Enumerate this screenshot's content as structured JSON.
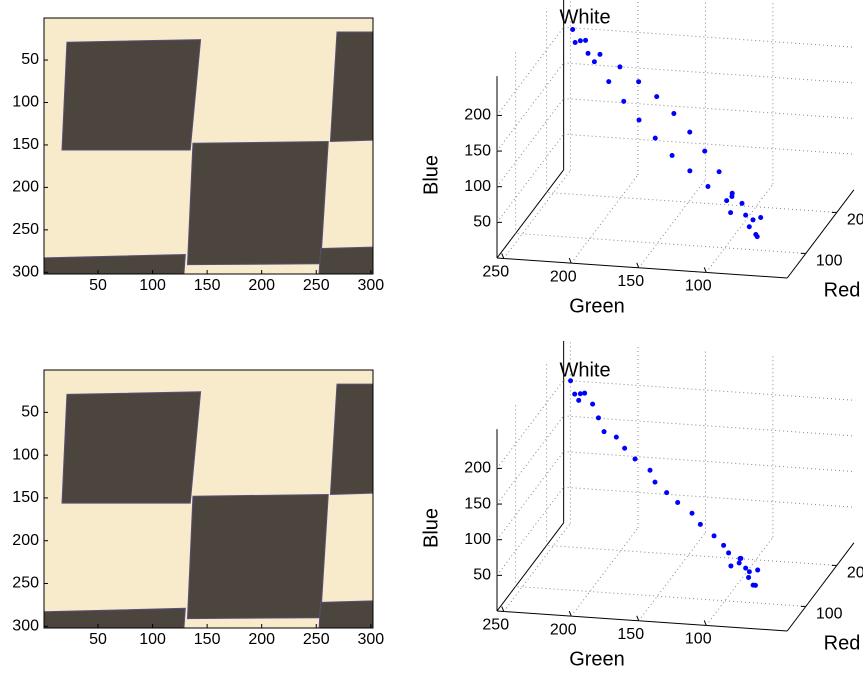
{
  "chart_data": [
    {
      "type": "image",
      "xlim": [
        0.5,
        302
      ],
      "ylim": [
        0.5,
        302
      ],
      "xticks": [
        50,
        100,
        150,
        200,
        250,
        300
      ],
      "yticks": [
        50,
        100,
        150,
        200,
        250,
        300
      ]
    },
    {
      "type": "scatter3d",
      "title": "White",
      "xlabel": "Red",
      "ylabel": "Green",
      "zlabel": "Blue",
      "color": "#0000ff",
      "xlim": [
        40,
        255
      ],
      "ylim": [
        40,
        255
      ],
      "zlim": [
        0,
        255
      ],
      "xticks": [
        100,
        200
      ],
      "yticks": [
        100,
        150,
        200,
        250
      ],
      "zticks": [
        50,
        100,
        150,
        200
      ],
      "grid": true,
      "x": [
        200,
        180,
        161,
        144,
        128,
        115,
        104,
        96,
        89,
        84,
        198,
        197,
        192,
        185,
        175,
        161,
        144,
        125,
        102,
        80,
        70,
        90,
        85,
        75,
        95,
        65,
        88,
        78,
        195,
        205,
        190,
        210
      ],
      "y": [
        230,
        215,
        200,
        185,
        170,
        155,
        140,
        125,
        110,
        95,
        215,
        200,
        185,
        170,
        155,
        140,
        125,
        110,
        95,
        80,
        75,
        85,
        70,
        90,
        78,
        68,
        92,
        72,
        225,
        235,
        222,
        238
      ],
      "z": [
        216,
        200,
        185,
        169,
        154,
        138,
        122,
        107,
        91,
        76,
        200,
        185,
        169,
        154,
        138,
        122,
        107,
        91,
        76,
        60,
        50,
        70,
        55,
        65,
        45,
        40,
        80,
        35,
        220,
        210,
        205,
        225
      ]
    },
    {
      "type": "image",
      "xlim": [
        0.5,
        302
      ],
      "ylim": [
        0.5,
        302
      ],
      "xticks": [
        50,
        100,
        150,
        200,
        250,
        300
      ],
      "yticks": [
        50,
        100,
        150,
        200,
        250,
        300
      ]
    },
    {
      "type": "scatter3d",
      "title": "White",
      "xlabel": "Red",
      "ylabel": "Green",
      "zlabel": "Blue",
      "color": "#0000ff",
      "xlim": [
        40,
        255
      ],
      "ylim": [
        40,
        255
      ],
      "zlim": [
        0,
        255
      ],
      "xticks": [
        100,
        200
      ],
      "yticks": [
        100,
        150,
        200,
        250
      ],
      "zticks": [
        50,
        100,
        150,
        200
      ],
      "grid": true,
      "x": [
        200,
        192,
        208,
        196,
        212,
        186,
        180,
        172,
        168,
        160,
        150,
        146,
        136,
        130,
        122,
        116,
        108,
        100,
        96,
        80,
        72,
        88,
        84,
        76,
        92,
        68,
        86,
        78,
        94,
        82
      ],
      "y": [
        230,
        225,
        236,
        220,
        240,
        228,
        212,
        206,
        196,
        188,
        178,
        166,
        160,
        150,
        140,
        128,
        120,
        108,
        100,
        80,
        76,
        86,
        72,
        90,
        80,
        70,
        94,
        74,
        88,
        84
      ],
      "z": [
        216,
        222,
        210,
        205,
        226,
        215,
        196,
        182,
        178,
        168,
        160,
        148,
        138,
        128,
        120,
        110,
        100,
        90,
        80,
        60,
        52,
        68,
        56,
        64,
        48,
        44,
        76,
        38,
        58,
        72
      ]
    }
  ]
}
